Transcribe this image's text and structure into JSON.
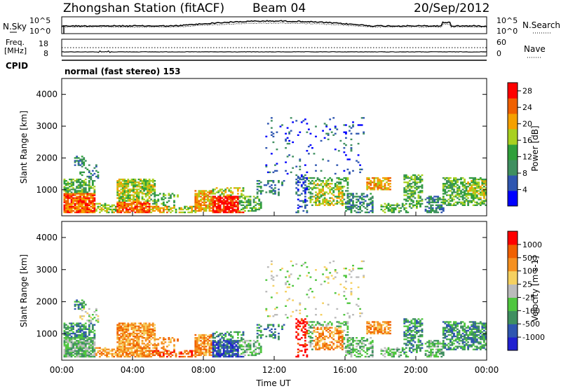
{
  "header": {
    "station": "Zhongshan Station (fitACF)",
    "beam": "Beam 04",
    "date": "20/Sep/2012"
  },
  "noise_panel": {
    "left_label": "N.Sky",
    "right_label": "N.Search",
    "left_ticks": [
      "10^5",
      "10^0"
    ],
    "right_ticks": [
      "10^5",
      "10^0"
    ]
  },
  "freq_panel": {
    "left_label_top": "Freq.",
    "left_label_bottom": "[MHz]",
    "right_label": "Nave",
    "left_ticks": [
      "18",
      "8"
    ],
    "right_ticks": [
      "60",
      "0"
    ]
  },
  "cpid": {
    "label": "CPID",
    "mode_text": "normal (fast stereo) 153"
  },
  "colors": {
    "power_scale": [
      "#0000ff",
      "#2f56b0",
      "#3f8f60",
      "#2f9f3a",
      "#a8d020",
      "#f5a000",
      "#f06000",
      "#ff0000"
    ],
    "velocity_scale": [
      "#2020d0",
      "#2f56b0",
      "#3f8f60",
      "#4fc63f",
      "#bbbbbb",
      "#f5d060",
      "#f59020",
      "#f06000",
      "#ff0000"
    ]
  },
  "chart_data": [
    {
      "type": "heatmap",
      "name": "Power",
      "xlabel": "",
      "ylabel": "Slant Range [km]",
      "ylim": [
        180,
        4500
      ],
      "xlim": [
        "00:00",
        "24:00"
      ],
      "yticks": [
        "1000",
        "2000",
        "3000",
        "4000"
      ],
      "colorbar": {
        "label": "Power [dB]",
        "ticks": [
          "4",
          "8",
          "12",
          "16",
          "20",
          "24",
          "28"
        ],
        "range": [
          0,
          30
        ]
      }
    },
    {
      "type": "heatmap",
      "name": "Velocity",
      "xlabel": "Time UT",
      "ylabel": "Slant Range [km]",
      "ylim": [
        180,
        4500
      ],
      "xlim": [
        "00:00",
        "24:00"
      ],
      "xticks": [
        "00:00",
        "04:00",
        "08:00",
        "12:00",
        "16:00",
        "20:00",
        "00:00"
      ],
      "yticks": [
        "1000",
        "2000",
        "3000",
        "4000"
      ],
      "colorbar": {
        "label": "Velocity [m s-1]",
        "ticks": [
          "1000",
          "500",
          "100",
          "25",
          "-25",
          "-100",
          "-500",
          "-1000"
        ]
      }
    }
  ]
}
